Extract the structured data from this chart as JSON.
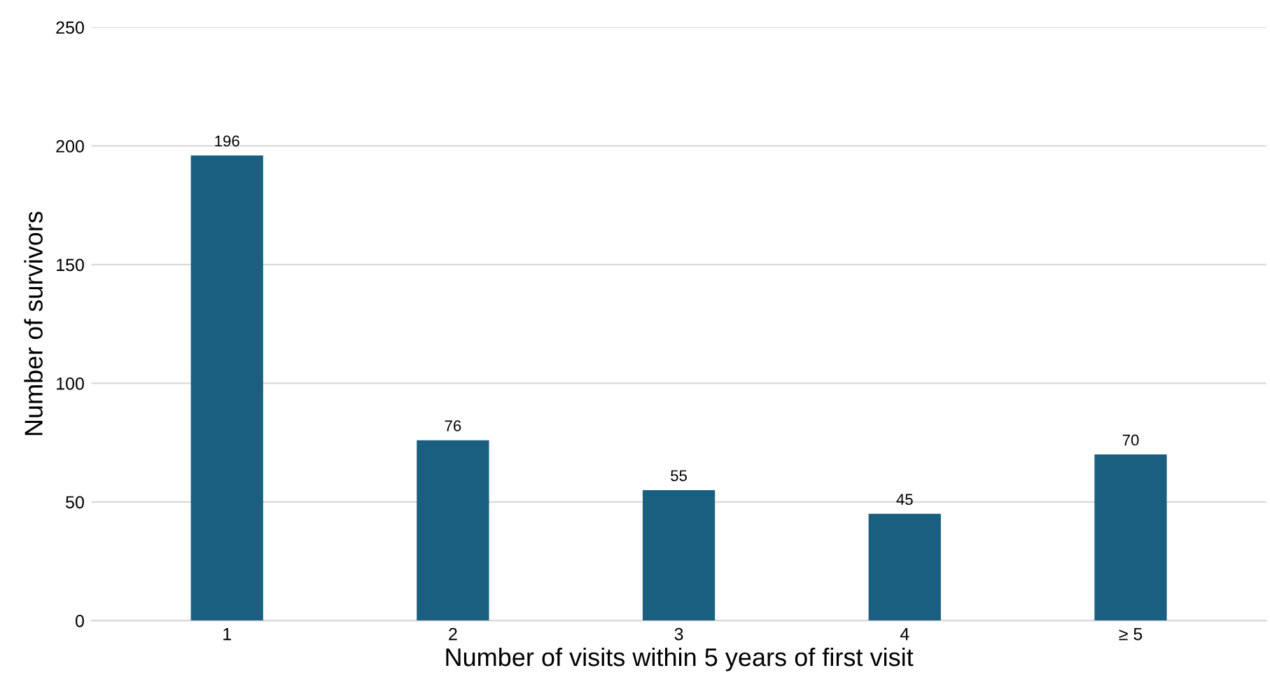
{
  "chart_data": {
    "type": "bar",
    "xlabel": "Number of visits within 5 years of first visit",
    "ylabel": "Number of survivors",
    "categories": [
      "1",
      "2",
      "3",
      "4",
      "≥ 5"
    ],
    "values": [
      196,
      76,
      55,
      45,
      70
    ],
    "color": "#1a5f80",
    "ylim": [
      0,
      250
    ],
    "yticks": [
      0,
      50,
      100,
      150,
      200,
      250
    ],
    "grid": "y",
    "data_labels": true
  }
}
